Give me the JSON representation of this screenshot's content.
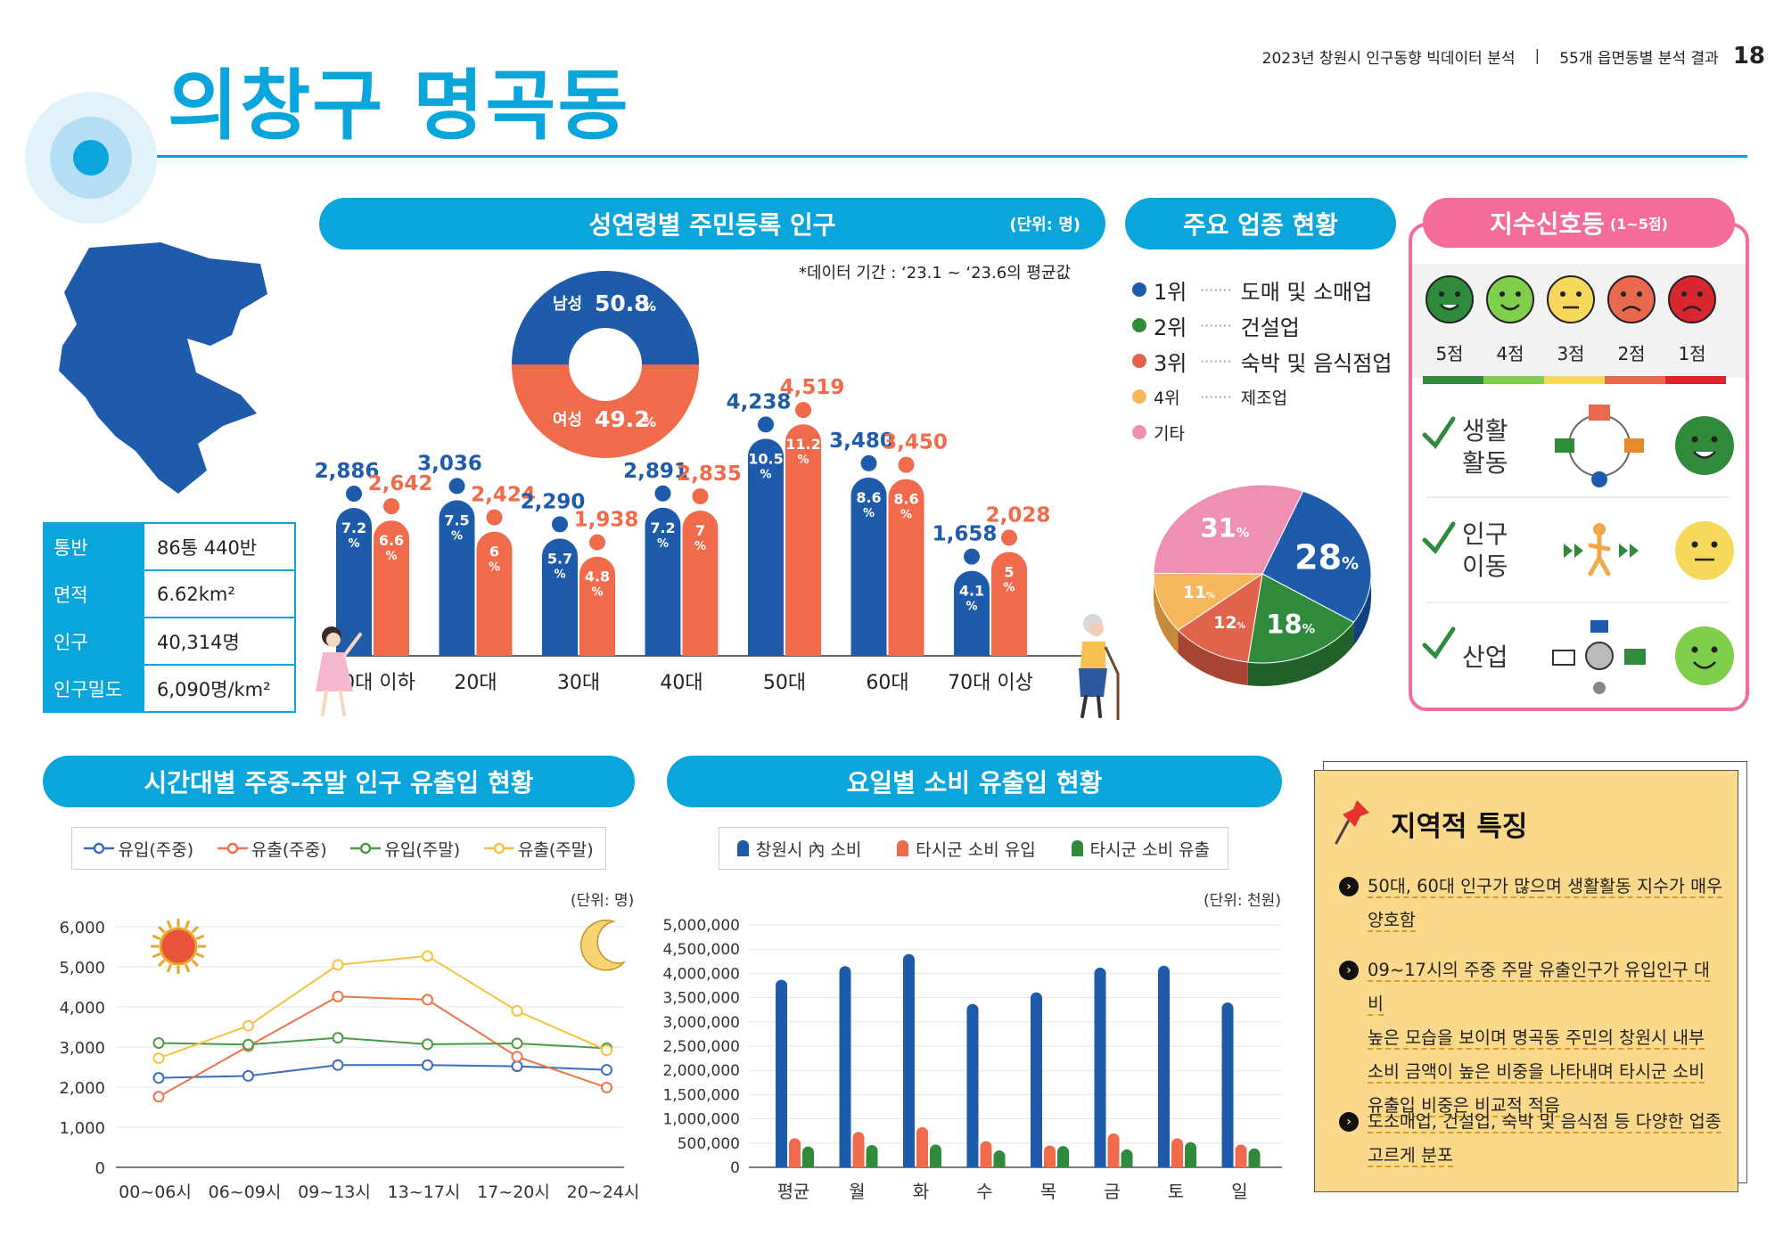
{
  "header": {
    "report_title": "2023년 창원시 인구동향 빅데이터 분석",
    "report_sub": "55개 읍면동별 분석 결과",
    "page_number": "18",
    "district_title": "의창구 명곡동"
  },
  "stats": [
    {
      "key": "통반",
      "value": "86통 440반"
    },
    {
      "key": "면적",
      "value": "6.62km²"
    },
    {
      "key": "인구",
      "value": "40,314명"
    },
    {
      "key": "인구밀도",
      "value": "6,090명/km²"
    }
  ],
  "population_section": {
    "title": "성연령별 주민등록 인구",
    "unit": "(단위: 명)",
    "note": "*데이터 기간 : ‘23.1 ~ ‘23.6의 평균값",
    "male_label": "남성",
    "male_pct": "50.8",
    "female_label": "여성",
    "female_pct": "49.2",
    "pct_sign": "%"
  },
  "age_chart": {
    "type": "bar",
    "categories": [
      "10대 이하",
      "20대",
      "30대",
      "40대",
      "50대",
      "60대",
      "70대 이상"
    ],
    "series": [
      {
        "name": "남성",
        "values": [
          2886,
          3036,
          2290,
          2891,
          4238,
          3480,
          1658
        ],
        "labels": [
          "2,886",
          "3,036",
          "2,290",
          "2,891",
          "4,238",
          "3,480",
          "1,658"
        ],
        "pcts": [
          "7.2",
          "7.5",
          "5.7",
          "7.2",
          "10.5",
          "8.6",
          "4.1"
        ]
      },
      {
        "name": "여성",
        "values": [
          2642,
          2424,
          1938,
          2835,
          4519,
          3450,
          2028
        ],
        "labels": [
          "2,642",
          "2,424",
          "1,938",
          "2,835",
          "4,519",
          "3,450",
          "2,028"
        ],
        "pcts": [
          "6.6",
          "6",
          "4.8",
          "7",
          "11.2",
          "8.6",
          "5"
        ]
      }
    ],
    "colors": {
      "male": "#1e5bab",
      "female": "#f06b4b"
    }
  },
  "industry_section": {
    "title": "주요 업종 현황",
    "legend": [
      {
        "rank": "1위",
        "name": "도매 및 소매업",
        "color": "#1e5bab"
      },
      {
        "rank": "2위",
        "name": "건설업",
        "color": "#2f8a3b"
      },
      {
        "rank": "3위",
        "name": "숙박 및 음식점업",
        "color": "#e0644b"
      },
      {
        "rank": "4위",
        "name": "제조업",
        "color": "#f6b65b"
      },
      {
        "rank": "기타",
        "name": "",
        "color": "#ef8fb4"
      }
    ],
    "pie": {
      "type": "pie",
      "values": [
        28,
        18,
        12,
        11,
        31
      ],
      "labels": [
        "28",
        "18",
        "12",
        "11",
        "31"
      ],
      "colors": [
        "#1e5bab",
        "#2f8a3b",
        "#e0644b",
        "#f6b65b",
        "#ef8fb4"
      ]
    }
  },
  "signal_section": {
    "title": "지수신호등",
    "title_sub": "(1~5점)",
    "scale": [
      "5점",
      "4점",
      "3점",
      "2점",
      "1점"
    ],
    "scale_colors": [
      "#2f8a3b",
      "#7fcf4d",
      "#f6d85b",
      "#e9694f",
      "#d8262e"
    ],
    "items": [
      {
        "label_1": "생활",
        "label_2": "활동",
        "score_color": "#2f8a3b"
      },
      {
        "label_1": "인구",
        "label_2": "이동",
        "score_color": "#f6d85b"
      },
      {
        "label_1": "산업",
        "label_2": "",
        "score_color": "#7fcf4d"
      }
    ]
  },
  "flow_section": {
    "title": "시간대별 주중-주말 인구 유출입 현황",
    "unit": "(단위: 명)",
    "chart_data": {
      "type": "line",
      "categories": [
        "00~06시",
        "06~09시",
        "09~13시",
        "13~17시",
        "17~20시",
        "20~24시"
      ],
      "series": [
        {
          "name": "유입(주중)",
          "values": [
            2230,
            2280,
            2550,
            2550,
            2520,
            2430
          ],
          "color": "#3a6bbf"
        },
        {
          "name": "유출(주중)",
          "values": [
            1760,
            3020,
            4260,
            4180,
            2760,
            1990
          ],
          "color": "#ef7448"
        },
        {
          "name": "유입(주말)",
          "values": [
            3100,
            3060,
            3230,
            3070,
            3090,
            2970
          ],
          "color": "#4a9a48"
        },
        {
          "name": "유출(주말)",
          "values": [
            2720,
            3530,
            5050,
            5270,
            3900,
            2920
          ],
          "color": "#f5c342"
        }
      ],
      "yticks": [
        "6,000",
        "5,000",
        "4,000",
        "3,000",
        "2,000",
        "1,000",
        "0"
      ],
      "ylim": [
        0,
        6000
      ]
    }
  },
  "consumption_section": {
    "title": "요일별 소비 유출입 현황",
    "unit": "(단위: 천원)",
    "chart_data": {
      "type": "bar",
      "categories": [
        "평균",
        "월",
        "화",
        "수",
        "목",
        "금",
        "토",
        "일"
      ],
      "series": [
        {
          "name": "창원시 內 소비",
          "values": [
            3870000,
            4150000,
            4400000,
            3370000,
            3610000,
            4120000,
            4160000,
            3400000
          ],
          "color": "#1e5bab"
        },
        {
          "name": "타시군 소비 유입",
          "values": [
            600000,
            730000,
            830000,
            540000,
            450000,
            700000,
            600000,
            470000
          ],
          "color": "#f06b4b"
        },
        {
          "name": "타시군 소비 유출",
          "values": [
            430000,
            460000,
            470000,
            350000,
            440000,
            370000,
            520000,
            390000
          ],
          "color": "#2f8a3b"
        }
      ],
      "yticks": [
        "5,000,000",
        "4,500,000",
        "4,000,000",
        "3,500,000",
        "3,000,000",
        "2,500,000",
        "2,000,000",
        "1,500,000",
        "1,000,000",
        "500,000",
        "0"
      ],
      "ylim": [
        0,
        5000000
      ]
    }
  },
  "feature_section": {
    "title": "지역적 특징",
    "items": [
      [
        "50대, 60대 인구가 많으며 생활활동 지수가 매우",
        "양호함"
      ],
      [
        "09~17시의 주중 주말 유출인구가 유입인구 대비",
        "높은 모습을 보이며 명곡동 주민의 창원시 내부",
        "소비 금액이 높은 비중을 나타내며 타시군 소비",
        "유출입 비중은 비교적 적음"
      ],
      [
        "도소매업, 건설업, 숙박 및 음식점 등 다양한 업종",
        "고르게 분포"
      ]
    ]
  }
}
